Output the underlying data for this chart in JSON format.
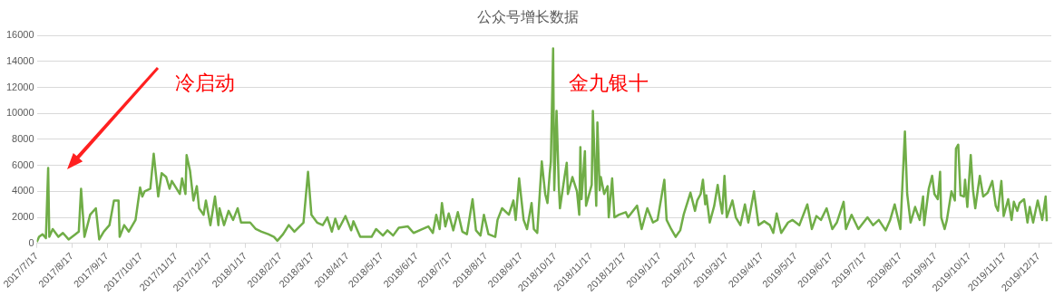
{
  "chart_data": {
    "type": "line",
    "title": "公众号增长数据",
    "x": [
      "2017-07-17",
      "2017-07-19",
      "2017-07-22",
      "2017-07-25",
      "2017-07-27",
      "2017-07-28",
      "2017-07-31",
      "2017-08-05",
      "2017-08-09",
      "2017-08-14",
      "2017-08-20",
      "2017-08-23",
      "2017-08-25",
      "2017-08-28",
      "2017-09-02",
      "2017-09-07",
      "2017-09-10",
      "2017-09-14",
      "2017-09-19",
      "2017-09-23",
      "2017-09-27",
      "2017-09-28",
      "2017-10-02",
      "2017-10-06",
      "2017-10-12",
      "2017-10-16",
      "2017-10-18",
      "2017-10-20",
      "2017-10-25",
      "2017-10-28",
      "2017-11-01",
      "2017-11-04",
      "2017-11-08",
      "2017-11-11",
      "2017-11-13",
      "2017-11-20",
      "2017-11-22",
      "2017-11-25",
      "2017-11-26",
      "2017-11-29",
      "2017-12-02",
      "2017-12-05",
      "2017-12-07",
      "2017-12-11",
      "2017-12-13",
      "2017-12-17",
      "2017-12-21",
      "2017-12-24",
      "2017-12-25",
      "2017-12-29",
      "2018-01-02",
      "2018-01-06",
      "2018-01-10",
      "2018-01-13",
      "2018-01-21",
      "2018-01-26",
      "2018-01-31",
      "2018-02-06",
      "2018-02-11",
      "2018-02-14",
      "2018-02-19",
      "2018-02-24",
      "2018-03-01",
      "2018-03-09",
      "2018-03-13",
      "2018-03-16",
      "2018-03-21",
      "2018-03-26",
      "2018-03-30",
      "2018-04-03",
      "2018-04-06",
      "2018-04-09",
      "2018-04-15",
      "2018-04-20",
      "2018-04-22",
      "2018-04-28",
      "2018-05-08",
      "2018-05-12",
      "2018-05-18",
      "2018-05-22",
      "2018-05-27",
      "2018-06-01",
      "2018-06-09",
      "2018-06-14",
      "2018-06-27",
      "2018-07-01",
      "2018-07-04",
      "2018-07-07",
      "2018-07-09",
      "2018-07-12",
      "2018-07-15",
      "2018-07-19",
      "2018-07-23",
      "2018-07-27",
      "2018-07-31",
      "2018-08-05",
      "2018-08-08",
      "2018-08-12",
      "2018-08-15",
      "2018-08-19",
      "2018-08-25",
      "2018-08-27",
      "2018-08-31",
      "2018-09-06",
      "2018-09-10",
      "2018-09-12",
      "2018-09-15",
      "2018-09-19",
      "2018-09-22",
      "2018-09-26",
      "2018-09-28",
      "2018-10-01",
      "2018-10-05",
      "2018-10-08",
      "2018-10-10",
      "2018-10-12",
      "2018-10-13",
      "2018-10-15",
      "2018-10-16",
      "2018-10-18",
      "2018-10-20",
      "2018-10-21",
      "2018-10-25",
      "2018-10-27",
      "2018-10-28",
      "2018-11-01",
      "2018-11-05",
      "2018-11-07",
      "2018-11-08",
      "2018-11-09",
      "2018-11-12",
      "2018-11-13",
      "2018-11-18",
      "2018-11-19",
      "2018-11-22",
      "2018-11-23",
      "2018-11-25",
      "2018-11-26",
      "2018-11-29",
      "2018-12-02",
      "2018-12-03",
      "2018-12-06",
      "2018-12-08",
      "2018-12-12",
      "2018-12-18",
      "2018-12-20",
      "2018-12-28",
      "2019-01-01",
      "2019-01-06",
      "2019-01-11",
      "2019-01-15",
      "2019-01-21",
      "2019-01-23",
      "2019-01-27",
      "2019-01-31",
      "2019-02-04",
      "2019-02-07",
      "2019-02-13",
      "2019-02-17",
      "2019-02-19",
      "2019-02-22",
      "2019-02-24",
      "2019-02-26",
      "2019-02-27",
      "2019-03-02",
      "2019-03-06",
      "2019-03-09",
      "2019-03-11",
      "2019-03-13",
      "2019-03-15",
      "2019-03-17",
      "2019-03-22",
      "2019-03-25",
      "2019-03-29",
      "2019-04-02",
      "2019-04-05",
      "2019-04-10",
      "2019-04-14",
      "2019-04-19",
      "2019-04-24",
      "2019-04-27",
      "2019-04-30",
      "2019-05-04",
      "2019-05-10",
      "2019-05-14",
      "2019-05-20",
      "2019-05-27",
      "2019-05-31",
      "2019-06-04",
      "2019-06-08",
      "2019-06-13",
      "2019-06-18",
      "2019-06-22",
      "2019-06-28",
      "2019-06-30",
      "2019-07-05",
      "2019-07-11",
      "2019-07-19",
      "2019-07-24",
      "2019-07-29",
      "2019-08-04",
      "2019-08-08",
      "2019-08-12",
      "2019-08-17",
      "2019-08-21",
      "2019-08-23",
      "2019-08-26",
      "2019-08-30",
      "2019-09-03",
      "2019-09-06",
      "2019-09-07",
      "2019-09-11",
      "2019-09-14",
      "2019-09-16",
      "2019-09-19",
      "2019-09-21",
      "2019-09-22",
      "2019-09-25",
      "2019-09-27",
      "2019-10-01",
      "2019-10-04",
      "2019-10-05",
      "2019-10-07",
      "2019-10-09",
      "2019-10-12",
      "2019-10-13",
      "2019-10-15",
      "2019-10-18",
      "2019-10-20",
      "2019-10-22",
      "2019-10-26",
      "2019-10-29",
      "2019-11-02",
      "2019-11-06",
      "2019-11-09",
      "2019-11-11",
      "2019-11-14",
      "2019-11-16",
      "2019-11-20",
      "2019-11-23",
      "2019-11-25",
      "2019-11-28",
      "2019-11-30",
      "2019-12-04",
      "2019-12-07",
      "2019-12-09",
      "2019-12-12",
      "2019-12-16",
      "2019-12-20",
      "2019-12-23",
      "2019-12-24"
    ],
    "series": [
      {
        "color": "#70ad47",
        "values": [
          100,
          500,
          700,
          400,
          5800,
          500,
          1100,
          500,
          800,
          300,
          700,
          900,
          4200,
          500,
          2200,
          2700,
          300,
          900,
          1400,
          3300,
          3300,
          500,
          1400,
          900,
          1800,
          4300,
          3600,
          4000,
          4200,
          6900,
          3600,
          5400,
          5100,
          4200,
          4800,
          3800,
          5000,
          3800,
          6800,
          5600,
          3300,
          4400,
          2700,
          2200,
          3300,
          1400,
          3600,
          1400,
          2700,
          1400,
          2500,
          1800,
          2700,
          1600,
          1600,
          1100,
          900,
          700,
          500,
          200,
          700,
          1400,
          900,
          1600,
          5500,
          2200,
          1600,
          1400,
          2000,
          900,
          1900,
          1100,
          2100,
          1000,
          1700,
          500,
          500,
          1100,
          600,
          1000,
          600,
          1200,
          1300,
          800,
          1300,
          800,
          2200,
          1100,
          3100,
          1300,
          2300,
          1000,
          2400,
          900,
          700,
          3400,
          1000,
          600,
          2200,
          700,
          500,
          1800,
          2700,
          2200,
          3300,
          1800,
          5000,
          1800,
          1100,
          3100,
          1100,
          800,
          6300,
          3800,
          3100,
          5400,
          6300,
          15000,
          4100,
          10200,
          4400,
          2700,
          5100,
          6200,
          3800,
          5100,
          4000,
          2200,
          7400,
          3400,
          7100,
          2900,
          4500,
          10200,
          2900,
          9300,
          4100,
          5100,
          3800,
          4400,
          2000,
          5000,
          2000,
          2200,
          2400,
          2000,
          2900,
          1100,
          2700,
          1600,
          1800,
          4900,
          1800,
          1100,
          500,
          1000,
          2200,
          3900,
          2500,
          3300,
          3800,
          4900,
          3000,
          3700,
          1600,
          2900,
          4500,
          3300,
          2300,
          5200,
          2000,
          3300,
          2000,
          1400,
          3000,
          1600,
          4000,
          1400,
          1700,
          1400,
          800,
          2300,
          800,
          1600,
          1800,
          1400,
          3000,
          1100,
          2100,
          1800,
          2700,
          1100,
          1600,
          3200,
          1100,
          2200,
          1100,
          2000,
          1400,
          1800,
          1000,
          1800,
          3000,
          1100,
          8600,
          3800,
          1600,
          2800,
          1800,
          3600,
          1400,
          4200,
          5200,
          3800,
          3400,
          5500,
          2000,
          1100,
          1800,
          4000,
          3300,
          7300,
          7600,
          3700,
          3600,
          4900,
          2800,
          6800,
          4100,
          2700,
          5200,
          3600,
          3900,
          4800,
          2900,
          2500,
          4800,
          2100,
          3400,
          1800,
          3200,
          2500,
          3100,
          3400,
          1600,
          2800,
          1600,
          3300,
          1800,
          3600,
          1700
        ]
      }
    ],
    "xlim": [
      "2017-07-17",
      "2019-12-28"
    ],
    "xticks": [
      {
        "value": "2017-07-17",
        "label": "2017/7/17"
      },
      {
        "value": "2017-08-17",
        "label": "2017/8/17"
      },
      {
        "value": "2017-09-17",
        "label": "2017/9/17"
      },
      {
        "value": "2017-10-17",
        "label": "2017/10/17"
      },
      {
        "value": "2017-11-17",
        "label": "2017/11/17"
      },
      {
        "value": "2017-12-17",
        "label": "2017/12/17"
      },
      {
        "value": "2018-01-17",
        "label": "2018/1/17"
      },
      {
        "value": "2018-02-17",
        "label": "2018/2/17"
      },
      {
        "value": "2018-03-17",
        "label": "2018/3/17"
      },
      {
        "value": "2018-04-17",
        "label": "2018/4/17"
      },
      {
        "value": "2018-05-17",
        "label": "2018/5/17"
      },
      {
        "value": "2018-06-17",
        "label": "2018/6/17"
      },
      {
        "value": "2018-07-17",
        "label": "2018/7/17"
      },
      {
        "value": "2018-08-17",
        "label": "2018/8/17"
      },
      {
        "value": "2018-09-17",
        "label": "2018/9/17"
      },
      {
        "value": "2018-10-17",
        "label": "2018/10/17"
      },
      {
        "value": "2018-11-17",
        "label": "2018/11/17"
      },
      {
        "value": "2018-12-17",
        "label": "2018/12/17"
      },
      {
        "value": "2019-01-17",
        "label": "2019/1/17"
      },
      {
        "value": "2019-02-17",
        "label": "2019/2/17"
      },
      {
        "value": "2019-03-17",
        "label": "2019/3/17"
      },
      {
        "value": "2019-04-17",
        "label": "2019/4/17"
      },
      {
        "value": "2019-05-17",
        "label": "2019/5/17"
      },
      {
        "value": "2019-06-17",
        "label": "2019/6/17"
      },
      {
        "value": "2019-07-17",
        "label": "2019/7/17"
      },
      {
        "value": "2019-08-17",
        "label": "2019/8/17"
      },
      {
        "value": "2019-09-17",
        "label": "2019/9/17"
      },
      {
        "value": "2019-10-17",
        "label": "2019/10/17"
      },
      {
        "value": "2019-11-17",
        "label": "2019/11/17"
      },
      {
        "value": "2019-12-17",
        "label": "2019/12/17"
      }
    ],
    "ylim": [
      0,
      16000
    ],
    "yticks": [
      0,
      2000,
      4000,
      6000,
      8000,
      10000,
      12000,
      14000,
      16000
    ],
    "grid": "y",
    "legend": false,
    "marker": "none",
    "annotations": [
      "冷启动",
      "金九银十"
    ]
  }
}
